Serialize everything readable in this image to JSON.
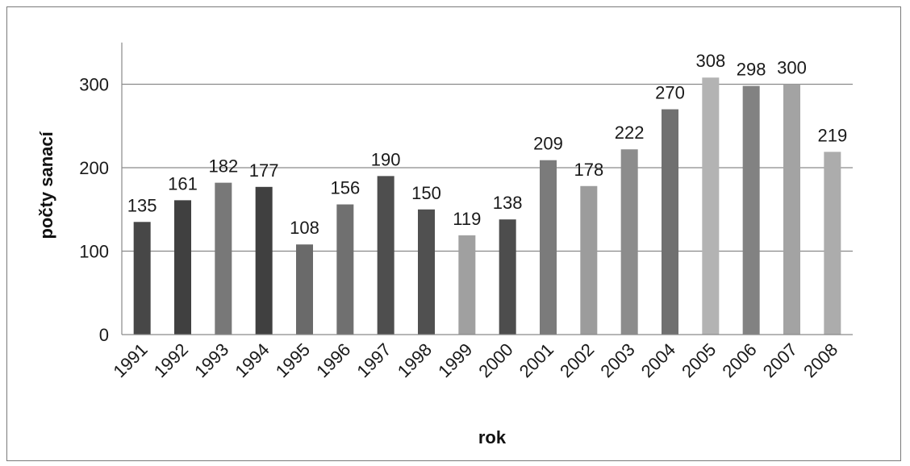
{
  "chart_data": {
    "type": "bar",
    "title": "",
    "xlabel": "rok",
    "ylabel": "počty sanací",
    "ylim": [
      0,
      350
    ],
    "yticks": [
      0,
      100,
      200,
      300
    ],
    "grid": true,
    "categories": [
      "1991",
      "1992",
      "1993",
      "1994",
      "1995",
      "1996",
      "1997",
      "1998",
      "1999",
      "2000",
      "2001",
      "2002",
      "2003",
      "2004",
      "2005",
      "2006",
      "2007",
      "2008"
    ],
    "values": [
      135,
      161,
      182,
      177,
      108,
      156,
      190,
      150,
      119,
      138,
      209,
      178,
      222,
      270,
      308,
      298,
      300,
      219
    ],
    "colors": [
      "#474747",
      "#404040",
      "#787878",
      "#404040",
      "#6a6a6a",
      "#707070",
      "#4e4e4e",
      "#505050",
      "#a0a0a0",
      "#4d4d4d",
      "#7b7b7b",
      "#9c9c9c",
      "#8c8c8c",
      "#707070",
      "#b3b3b3",
      "#828282",
      "#a3a3a3",
      "#acacac"
    ]
  }
}
